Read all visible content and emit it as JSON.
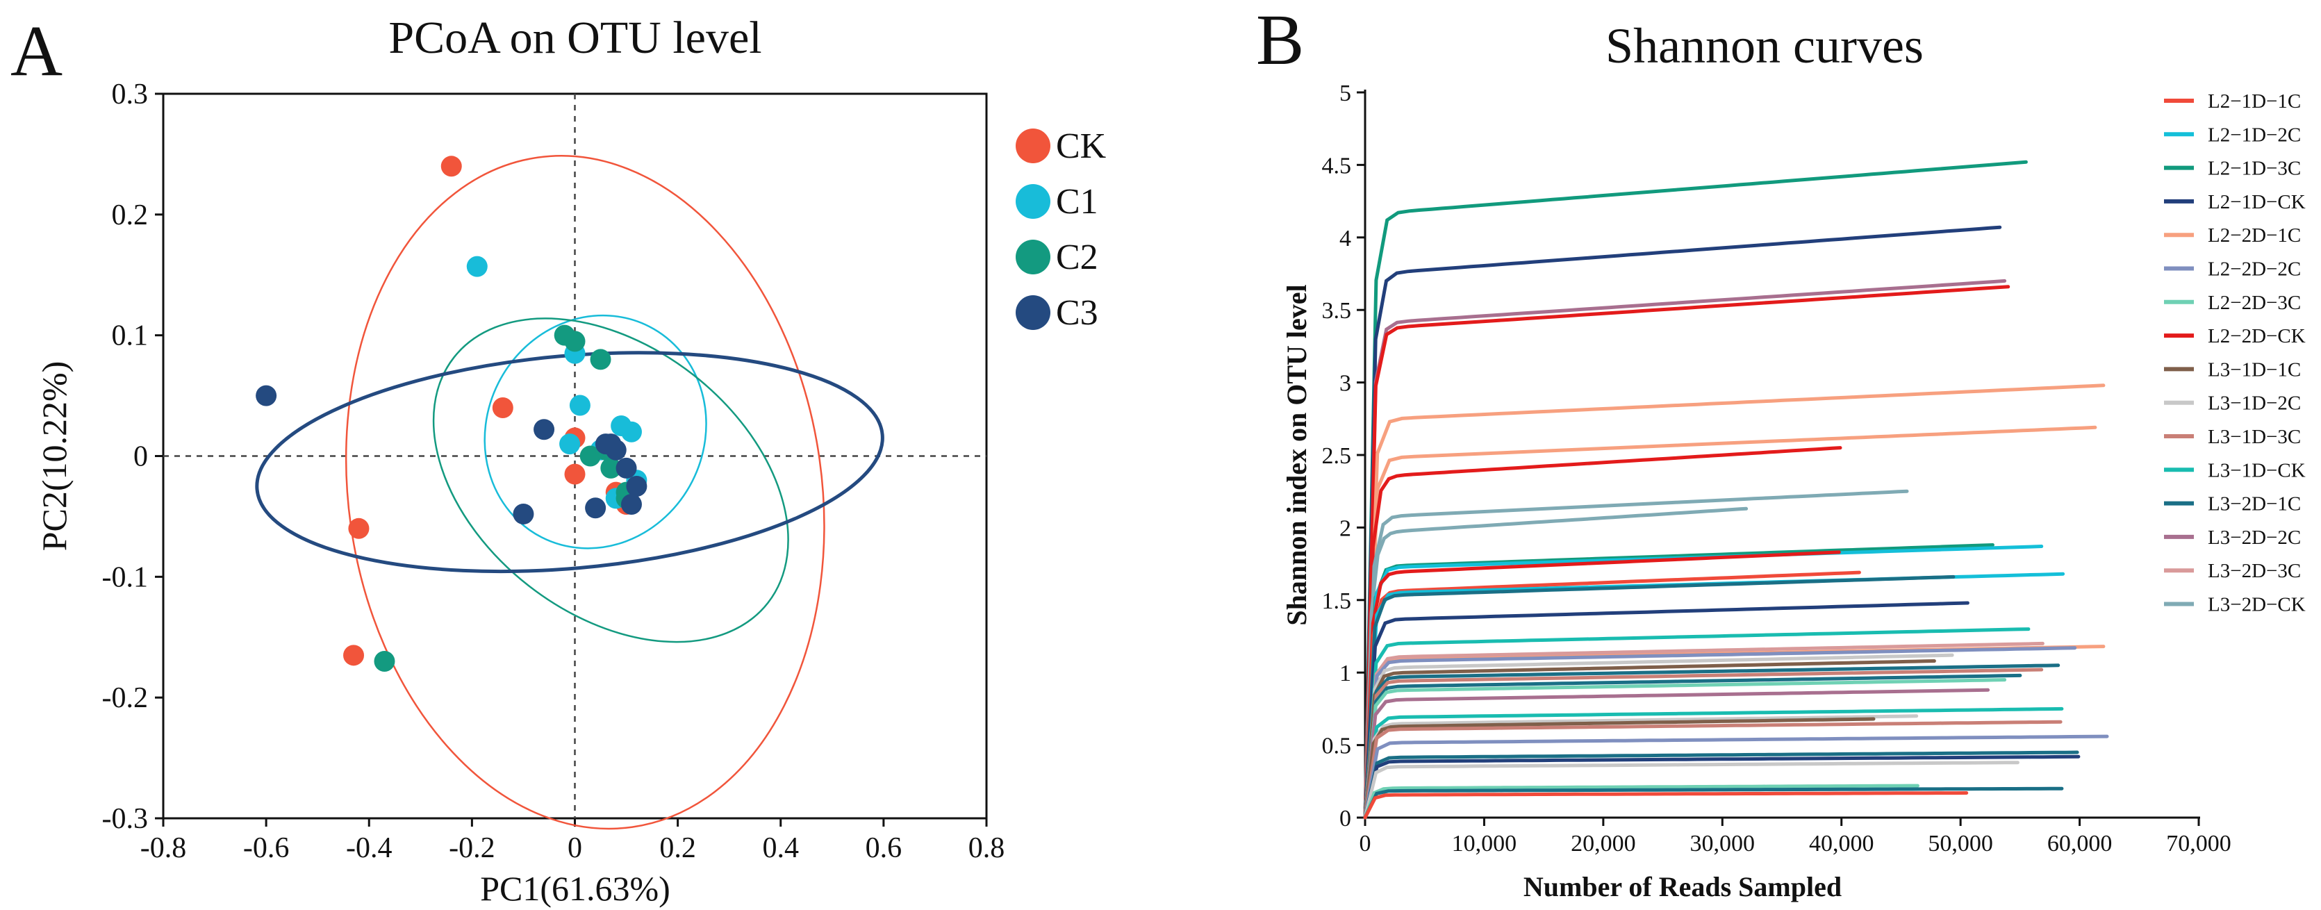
{
  "panels": {
    "a_letter": "A",
    "b_letter": "B"
  },
  "colors": {
    "CK": "#f1553b",
    "C1": "#18bcd9",
    "C2": "#139a80",
    "C3": "#244a80"
  },
  "chart_data": [
    {
      "type": "scatter",
      "title": "PCoA on OTU level",
      "xlabel": "PC1(61.63%)",
      "ylabel": "PC2(10.22%)",
      "xlim": [
        -0.8,
        0.8
      ],
      "ylim": [
        -0.3,
        0.3
      ],
      "xticks": [
        -0.8,
        -0.6,
        -0.4,
        -0.2,
        0,
        0.2,
        0.4,
        0.6,
        0.8
      ],
      "xtick_labels": [
        "-0.8",
        "-0.6",
        "-0.4",
        "-0.2",
        "0",
        "0.2",
        "0.4",
        "0.6",
        "0.8"
      ],
      "yticks": [
        -0.3,
        -0.2,
        -0.1,
        0,
        0.1,
        0.2,
        0.3
      ],
      "ytick_labels": [
        "-0.3",
        "-0.2",
        "-0.1",
        "0",
        "0.1",
        "0.2",
        "0.3"
      ],
      "grid": false,
      "zero_lines": true,
      "legend_position": "right",
      "series": [
        {
          "name": "CK",
          "color": "#f1553b",
          "points": [
            [
              -0.24,
              0.24
            ],
            [
              -0.14,
              0.04
            ],
            [
              -0.42,
              -0.06
            ],
            [
              -0.43,
              -0.165
            ],
            [
              0.0,
              0.015
            ],
            [
              0.0,
              -0.015
            ],
            [
              0.08,
              -0.03
            ],
            [
              0.1,
              -0.04
            ]
          ],
          "ellipse": {
            "cx": 0.02,
            "cy": -0.03,
            "rx": 0.46,
            "ry": 0.28,
            "angle": -8
          }
        },
        {
          "name": "C1",
          "color": "#18bcd9",
          "points": [
            [
              -0.19,
              0.157
            ],
            [
              0.0,
              0.085
            ],
            [
              0.01,
              0.042
            ],
            [
              0.09,
              0.025
            ],
            [
              0.11,
              0.02
            ],
            [
              0.12,
              -0.02
            ],
            [
              0.08,
              -0.035
            ],
            [
              -0.01,
              0.01
            ],
            [
              0.05,
              0.005
            ]
          ],
          "ellipse": {
            "cx": 0.04,
            "cy": 0.02,
            "rx": 0.23,
            "ry": 0.09,
            "angle": -63
          }
        },
        {
          "name": "C2",
          "color": "#139a80",
          "points": [
            [
              -0.37,
              -0.17
            ],
            [
              -0.02,
              0.1
            ],
            [
              0.0,
              0.095
            ],
            [
              0.05,
              0.08
            ],
            [
              0.03,
              0.0
            ],
            [
              0.07,
              -0.01
            ],
            [
              0.1,
              -0.03
            ],
            [
              0.1,
              -0.035
            ],
            [
              0.06,
              0.005
            ]
          ],
          "ellipse": {
            "cx": 0.07,
            "cy": -0.02,
            "rx": 0.26,
            "ry": 0.165,
            "angle": -52
          }
        },
        {
          "name": "C3",
          "color": "#244a80",
          "points": [
            [
              -0.6,
              0.05
            ],
            [
              -0.06,
              0.022
            ],
            [
              -0.1,
              -0.048
            ],
            [
              0.04,
              -0.043
            ],
            [
              0.07,
              0.01
            ],
            [
              0.08,
              0.005
            ],
            [
              0.1,
              -0.01
            ],
            [
              0.12,
              -0.025
            ],
            [
              0.11,
              -0.04
            ],
            [
              0.06,
              0.01
            ]
          ],
          "ellipse": {
            "cx": -0.01,
            "cy": -0.005,
            "rx": 0.61,
            "ry": 0.088,
            "angle": -5
          }
        }
      ]
    },
    {
      "type": "line",
      "title": "Shannon curves",
      "xlabel": "Number of Reads Sampled",
      "ylabel": "Shannon index on OTU level",
      "xlim": [
        0,
        70000
      ],
      "ylim": [
        0,
        5
      ],
      "xticks": [
        0,
        10000,
        20000,
        30000,
        40000,
        50000,
        60000,
        70000
      ],
      "xtick_labels": [
        "0",
        "10,000",
        "20,000",
        "30,000",
        "40,000",
        "50,000",
        "60,000",
        "70,000"
      ],
      "yticks": [
        0,
        0.5,
        1,
        1.5,
        2,
        2.5,
        3,
        3.5,
        4,
        4.5,
        5
      ],
      "ytick_labels": [
        "0",
        "0.5",
        "1",
        "1.5",
        "2",
        "2.5",
        "3",
        "3.5",
        "4",
        "4.5",
        "5"
      ],
      "grid": false,
      "legend_position": "top-right",
      "legend": [
        {
          "name": "L2−1D−1C",
          "color": "#f04a3a"
        },
        {
          "name": "L2−1D−2C",
          "color": "#14bfd9"
        },
        {
          "name": "L2−1D−3C",
          "color": "#119a7d"
        },
        {
          "name": "L2−1D−CK",
          "color": "#223f7b"
        },
        {
          "name": "L2−2D−1C",
          "color": "#f7a07f"
        },
        {
          "name": "L2−2D−2C",
          "color": "#7f8fbf"
        },
        {
          "name": "L2−2D−3C",
          "color": "#6fd1b4"
        },
        {
          "name": "L2−2D−CK",
          "color": "#e31b1b"
        },
        {
          "name": "L3−1D−1C",
          "color": "#7f5f4a"
        },
        {
          "name": "L3−1D−2C",
          "color": "#c8c8c8"
        },
        {
          "name": "L3−1D−3C",
          "color": "#c97f76"
        },
        {
          "name": "L3−1D−CK",
          "color": "#19bcb0"
        },
        {
          "name": "L3−2D−1C",
          "color": "#1a6f86"
        },
        {
          "name": "L3−2D−2C",
          "color": "#a86f8f"
        },
        {
          "name": "L3−2D−3C",
          "color": "#d99a9a"
        },
        {
          "name": "L3−2D−CK",
          "color": "#7faab4"
        }
      ],
      "curves": [
        {
          "color": "#119a7d",
          "y": 4.52,
          "x_end": 55500
        },
        {
          "color": "#223f7b",
          "y": 4.07,
          "x_end": 53300
        },
        {
          "color": "#a86f8f",
          "y": 3.7,
          "x_end": 53700
        },
        {
          "color": "#e31b1b",
          "y": 3.66,
          "x_end": 54000
        },
        {
          "color": "#f7a07f",
          "y": 2.98,
          "x_end": 62000
        },
        {
          "color": "#f7a07f",
          "y": 2.69,
          "x_end": 61300
        },
        {
          "color": "#e31b1b",
          "y": 2.55,
          "x_end": 39900
        },
        {
          "color": "#7faab4",
          "y": 2.25,
          "x_end": 45500
        },
        {
          "color": "#7faab4",
          "y": 2.13,
          "x_end": 32000
        },
        {
          "color": "#119a7d",
          "y": 1.88,
          "x_end": 52700
        },
        {
          "color": "#14bfd9",
          "y": 1.87,
          "x_end": 56800
        },
        {
          "color": "#e31b1b",
          "y": 1.83,
          "x_end": 39800
        },
        {
          "color": "#f04a3a",
          "y": 1.69,
          "x_end": 41500
        },
        {
          "color": "#14bfd9",
          "y": 1.68,
          "x_end": 58600
        },
        {
          "color": "#1a6f86",
          "y": 1.66,
          "x_end": 49400
        },
        {
          "color": "#223f7b",
          "y": 1.48,
          "x_end": 50600
        },
        {
          "color": "#19bcb0",
          "y": 1.3,
          "x_end": 55700
        },
        {
          "color": "#f7a07f",
          "y": 1.18,
          "x_end": 62000
        },
        {
          "color": "#d99a9a",
          "y": 1.2,
          "x_end": 56900
        },
        {
          "color": "#7f8fbf",
          "y": 1.17,
          "x_end": 59600
        },
        {
          "color": "#c8c8c8",
          "y": 1.12,
          "x_end": 49300
        },
        {
          "color": "#7f5f4a",
          "y": 1.08,
          "x_end": 47800
        },
        {
          "color": "#1a6f86",
          "y": 1.05,
          "x_end": 58200
        },
        {
          "color": "#c97f76",
          "y": 1.02,
          "x_end": 56800
        },
        {
          "color": "#1a6f86",
          "y": 0.98,
          "x_end": 55000
        },
        {
          "color": "#6fd1b4",
          "y": 0.95,
          "x_end": 53700
        },
        {
          "color": "#a86f8f",
          "y": 0.88,
          "x_end": 52300
        },
        {
          "color": "#19bcb0",
          "y": 0.75,
          "x_end": 58500
        },
        {
          "color": "#c8c8c8",
          "y": 0.7,
          "x_end": 46300
        },
        {
          "color": "#7f5f4a",
          "y": 0.68,
          "x_end": 42700
        },
        {
          "color": "#c97f76",
          "y": 0.66,
          "x_end": 58400
        },
        {
          "color": "#7f8fbf",
          "y": 0.56,
          "x_end": 62300
        },
        {
          "color": "#1a6f86",
          "y": 0.45,
          "x_end": 59800
        },
        {
          "color": "#223f7b",
          "y": 0.42,
          "x_end": 59900
        },
        {
          "color": "#c8c8c8",
          "y": 0.38,
          "x_end": 54800
        },
        {
          "color": "#6fd1b4",
          "y": 0.22,
          "x_end": 46400
        },
        {
          "color": "#1a6f86",
          "y": 0.2,
          "x_end": 58500
        },
        {
          "color": "#f04a3a",
          "y": 0.17,
          "x_end": 50500
        }
      ]
    }
  ]
}
